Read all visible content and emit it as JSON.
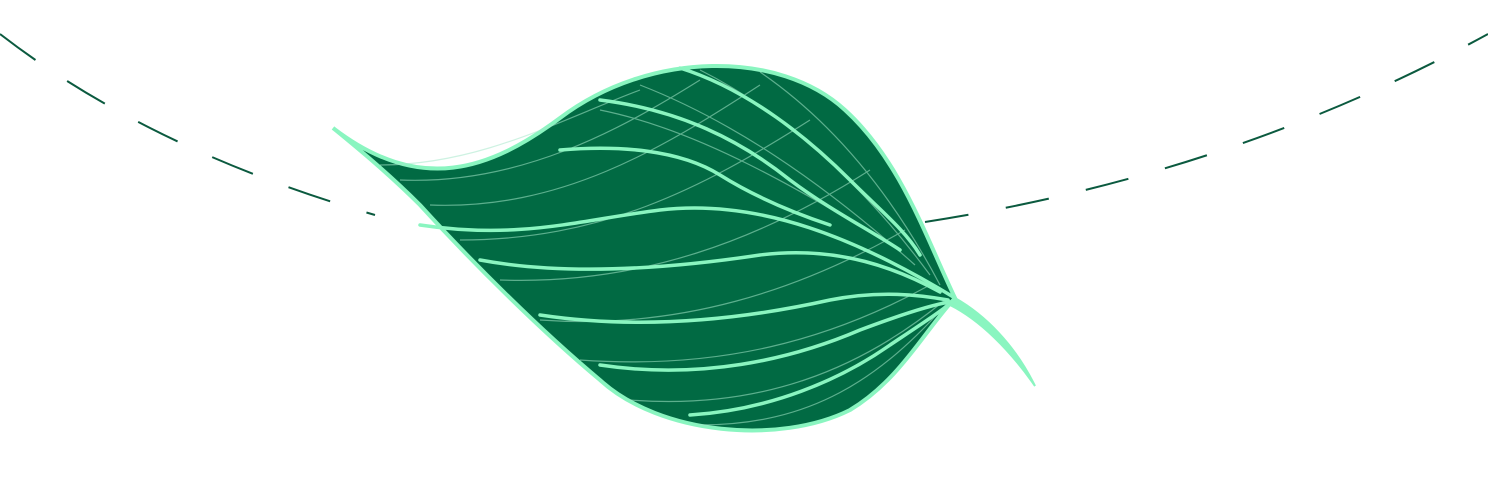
{
  "colors": {
    "background": "#ffffff",
    "dashed_path": "#0b5a3f",
    "leaf_fill": "#016a43",
    "leaf_outline": "#8af5c0",
    "leaf_veins": "#8af5c0",
    "leaf_fine_lines": "#a7e8cb"
  },
  "illustration": {
    "icon": "leaf-illustration",
    "decoration": "dashed-flight-path"
  }
}
